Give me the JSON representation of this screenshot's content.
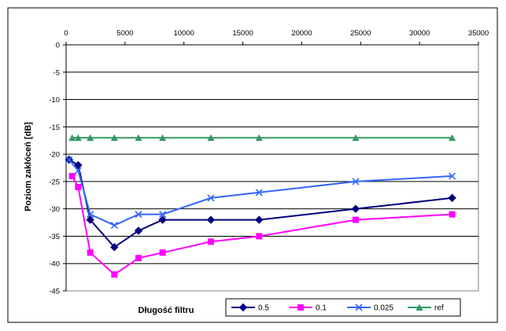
{
  "chart_data": {
    "type": "line",
    "title": "",
    "xlabel": "Długość filtru",
    "ylabel": "Poziom zakłóceń [dB]",
    "xlim": [
      0,
      35000
    ],
    "ylim": [
      -45,
      0
    ],
    "x_ticks": [
      "0",
      "5000",
      "10000",
      "15000",
      "20000",
      "25000",
      "30000",
      "35000"
    ],
    "y_ticks": [
      "0",
      "-5",
      "-10",
      "-15",
      "-20",
      "-25",
      "-30",
      "-35",
      "-40",
      "-45"
    ],
    "x_axis_position": "top",
    "grid": "horizontal",
    "legend_position": "bottom-right",
    "series": [
      {
        "name": "0.5",
        "color": "#000080",
        "marker": "diamond",
        "points": [
          [
            256,
            -21
          ],
          [
            1024,
            -22
          ],
          [
            2048,
            -32
          ],
          [
            4096,
            -37
          ],
          [
            6144,
            -34
          ],
          [
            8192,
            -32
          ],
          [
            12288,
            -32
          ],
          [
            16384,
            -32
          ],
          [
            24576,
            -30
          ],
          [
            32768,
            -28
          ]
        ]
      },
      {
        "name": "0.1",
        "color": "#ff00ff",
        "marker": "square",
        "points": [
          [
            512,
            -24
          ],
          [
            1024,
            -26
          ],
          [
            2048,
            -38
          ],
          [
            4096,
            -42
          ],
          [
            6144,
            -39
          ],
          [
            8192,
            -38
          ],
          [
            12288,
            -36
          ],
          [
            16384,
            -35
          ],
          [
            24576,
            -32
          ],
          [
            32768,
            -31
          ]
        ]
      },
      {
        "name": "0.025",
        "color": "#3366ff",
        "marker": "x",
        "points": [
          [
            256,
            -21
          ],
          [
            1024,
            -23
          ],
          [
            2048,
            -31
          ],
          [
            4096,
            -33
          ],
          [
            6144,
            -31
          ],
          [
            8192,
            -31
          ],
          [
            12288,
            -28
          ],
          [
            16384,
            -27
          ],
          [
            24576,
            -25
          ],
          [
            32768,
            -24
          ]
        ]
      },
      {
        "name": "ref",
        "color": "#339966",
        "marker": "triangle",
        "points": [
          [
            512,
            -17
          ],
          [
            1024,
            -17
          ],
          [
            2048,
            -17
          ],
          [
            4096,
            -17
          ],
          [
            6144,
            -17
          ],
          [
            8192,
            -17
          ],
          [
            12288,
            -17
          ],
          [
            16384,
            -17
          ],
          [
            24576,
            -17
          ],
          [
            32768,
            -17
          ]
        ]
      }
    ]
  }
}
